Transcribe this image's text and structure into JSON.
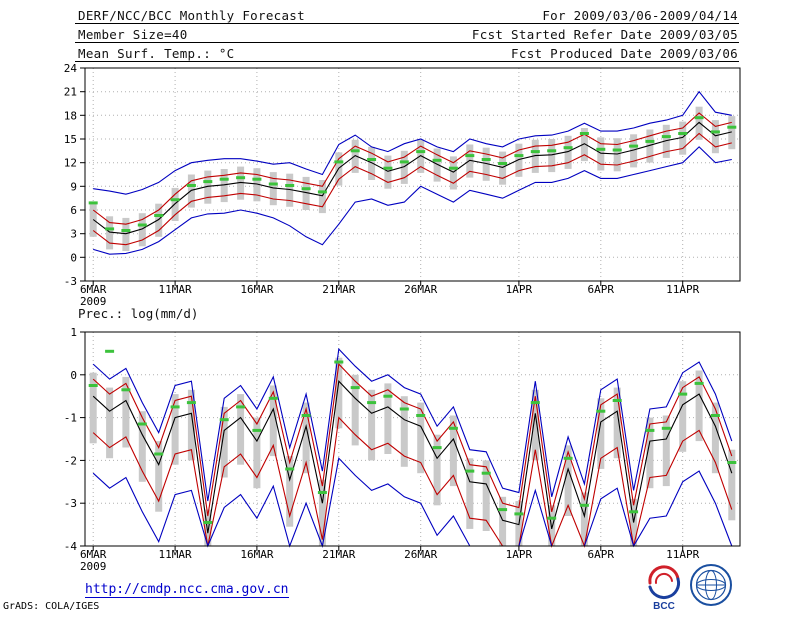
{
  "header": {
    "title": "DERF/NCC/BCC Monthly Forecast",
    "member_size": "Member Size=40",
    "for_range": "For 2009/03/06-2009/04/14",
    "refer_date": "Fcst Started Refer Date 2009/03/05",
    "produced_date": "Fcst Produced Date 2009/03/06"
  },
  "footer": {
    "grads_credit": "GrADS: COLA/IGES",
    "url": "http://cmdp.ncc.cma.gov.cn",
    "bcc_logo_label": "BCC"
  },
  "chart_data": [
    {
      "type": "line",
      "title": "Mean Surf. Temp.: °C",
      "n_points": 40,
      "x_tick_labels": [
        "6MAR",
        "11MAR",
        "16MAR",
        "21MAR",
        "26MAR",
        "1APR",
        "6APR",
        "11APR"
      ],
      "x_tick_days": [
        0,
        5,
        10,
        15,
        20,
        26,
        31,
        36
      ],
      "year_label": "2009",
      "ylim": [
        -3,
        24
      ],
      "yticks": [
        -3,
        0,
        3,
        6,
        9,
        12,
        15,
        18,
        21,
        24
      ],
      "grid": true,
      "legend": "none",
      "bars": {
        "name": "ensemble-spread-bar",
        "color": "#c9c9c9",
        "high": [
          6.8,
          5.2,
          5.0,
          5.6,
          6.8,
          8.8,
          10.5,
          11.0,
          11.2,
          11.5,
          11.3,
          10.8,
          10.6,
          10.2,
          9.8,
          13.3,
          14.9,
          14.0,
          12.9,
          13.5,
          14.9,
          13.8,
          12.8,
          14.3,
          13.9,
          13.4,
          14.4,
          14.9,
          15.0,
          15.4,
          16.4,
          15.2,
          15.1,
          15.6,
          16.2,
          16.8,
          17.2,
          19.1,
          17.4,
          17.9
        ],
        "low": [
          2.6,
          1.0,
          0.8,
          1.4,
          2.6,
          4.6,
          6.3,
          6.8,
          7.0,
          7.3,
          7.1,
          6.6,
          6.4,
          6.0,
          5.6,
          9.1,
          10.7,
          9.8,
          8.7,
          9.3,
          10.7,
          9.6,
          8.6,
          10.1,
          9.7,
          9.2,
          10.2,
          10.7,
          10.8,
          11.2,
          12.2,
          11.0,
          10.9,
          11.4,
          12.0,
          12.6,
          13.0,
          14.9,
          13.2,
          13.7
        ]
      },
      "series": [
        {
          "name": "ensemble-max",
          "style": "line",
          "color": "#0000c0",
          "values": [
            8.7,
            8.4,
            8.0,
            8.6,
            9.5,
            11.0,
            12.0,
            12.3,
            12.5,
            12.5,
            12.2,
            11.8,
            12.0,
            11.2,
            10.5,
            14.3,
            15.5,
            14.0,
            13.4,
            14.4,
            15.0,
            14.0,
            13.4,
            15.0,
            14.4,
            14.0,
            15.0,
            15.4,
            15.5,
            16.0,
            17.0,
            16.0,
            16.0,
            16.4,
            17.0,
            17.4,
            18.0,
            21.0,
            18.4,
            18.0
          ]
        },
        {
          "name": "mean-plus-std",
          "style": "line",
          "color": "#c00000",
          "values": [
            6.0,
            4.4,
            4.2,
            4.8,
            6.0,
            8.0,
            9.7,
            10.2,
            10.4,
            10.7,
            10.5,
            10.0,
            9.8,
            9.4,
            9.0,
            12.5,
            14.1,
            13.2,
            12.1,
            12.7,
            14.1,
            13.0,
            12.0,
            13.5,
            13.1,
            12.6,
            13.6,
            14.1,
            14.2,
            14.6,
            15.6,
            14.4,
            14.3,
            14.8,
            15.4,
            16.0,
            16.4,
            18.3,
            16.6,
            17.1
          ]
        },
        {
          "name": "ensemble-mean",
          "style": "line",
          "color": "#000000",
          "values": [
            4.8,
            3.2,
            3.0,
            3.6,
            4.8,
            6.8,
            8.5,
            9.0,
            9.2,
            9.5,
            9.3,
            8.8,
            8.6,
            8.2,
            7.8,
            11.3,
            12.9,
            12.0,
            10.9,
            11.5,
            12.9,
            11.8,
            10.8,
            12.3,
            11.9,
            11.4,
            12.4,
            12.9,
            13.0,
            13.4,
            14.4,
            13.2,
            13.1,
            13.6,
            14.2,
            14.8,
            15.2,
            17.1,
            15.4,
            15.9
          ]
        },
        {
          "name": "mean-minus-std",
          "style": "line",
          "color": "#c00000",
          "values": [
            3.4,
            1.8,
            1.6,
            2.2,
            3.4,
            5.4,
            7.1,
            7.6,
            7.8,
            8.1,
            7.9,
            7.4,
            7.2,
            6.8,
            6.4,
            9.9,
            11.5,
            10.6,
            9.5,
            10.1,
            11.5,
            10.4,
            9.4,
            10.9,
            10.5,
            10.0,
            11.0,
            11.5,
            11.6,
            12.0,
            13.0,
            11.8,
            11.7,
            12.2,
            12.8,
            13.4,
            13.8,
            15.7,
            14.0,
            14.5
          ]
        },
        {
          "name": "ensemble-min",
          "style": "line",
          "color": "#0000c0",
          "values": [
            1.0,
            0.4,
            0.5,
            1.0,
            2.0,
            3.5,
            5.0,
            5.5,
            5.6,
            6.0,
            5.6,
            5.0,
            4.0,
            2.6,
            1.6,
            4.2,
            7.0,
            7.4,
            6.6,
            7.0,
            9.0,
            8.0,
            7.0,
            8.5,
            8.0,
            7.5,
            8.5,
            9.5,
            9.5,
            10.0,
            11.0,
            10.0,
            10.0,
            10.5,
            11.0,
            11.5,
            12.0,
            14.0,
            12.0,
            12.4
          ]
        },
        {
          "name": "median-marks",
          "style": "marks",
          "color": "#3cc23c",
          "values": [
            6.9,
            3.6,
            3.4,
            4.1,
            5.3,
            7.3,
            9.1,
            9.6,
            9.9,
            10.1,
            9.9,
            9.3,
            9.1,
            8.7,
            8.3,
            12.1,
            13.5,
            12.4,
            11.3,
            12.1,
            13.4,
            12.3,
            11.3,
            12.9,
            12.4,
            11.9,
            12.9,
            13.4,
            13.5,
            13.9,
            15.7,
            13.7,
            13.6,
            14.1,
            14.7,
            15.3,
            15.7,
            17.7,
            15.9,
            16.5
          ]
        }
      ]
    },
    {
      "type": "line",
      "title": "Prec.: log(mm/d)",
      "n_points": 40,
      "x_tick_labels": [
        "6MAR",
        "11MAR",
        "16MAR",
        "21MAR",
        "26MAR",
        "1APR",
        "6APR",
        "11APR"
      ],
      "x_tick_days": [
        0,
        5,
        10,
        15,
        20,
        26,
        31,
        36
      ],
      "year_label": "2009",
      "ylim": [
        -4,
        1
      ],
      "yticks": [
        -4,
        -3,
        -2,
        -1,
        0,
        1
      ],
      "grid": true,
      "legend": "none",
      "bars": {
        "name": "ensemble-spread-bar",
        "color": "#c9c9c9",
        "high": [
          0.05,
          -0.3,
          -0.05,
          -0.85,
          -1.55,
          -0.45,
          -0.35,
          -3.15,
          -0.75,
          -0.45,
          -1.0,
          -0.25,
          -1.9,
          -0.65,
          -2.45,
          0.4,
          0.0,
          -0.35,
          -0.2,
          -0.5,
          -0.65,
          -1.4,
          -0.95,
          -1.95,
          -2.0,
          -2.85,
          -2.95,
          -0.35,
          -3.05,
          -1.65,
          -2.75,
          -0.55,
          -0.3,
          -2.9,
          -1.0,
          -0.95,
          -0.15,
          0.1,
          -0.65,
          -1.75
        ],
        "low": [
          -1.6,
          -1.95,
          -1.7,
          -2.5,
          -3.2,
          -2.1,
          -2.0,
          -4.0,
          -2.4,
          -2.1,
          -2.65,
          -1.9,
          -3.55,
          -2.3,
          -4.0,
          -1.25,
          -1.65,
          -2.0,
          -1.85,
          -2.15,
          -2.3,
          -3.05,
          -2.6,
          -3.6,
          -3.65,
          -4.0,
          -4.0,
          -2.0,
          -4.0,
          -3.3,
          -4.0,
          -2.2,
          -1.95,
          -4.0,
          -2.65,
          -2.6,
          -1.8,
          -1.55,
          -2.3,
          -3.4
        ]
      },
      "series": [
        {
          "name": "ensemble-max",
          "style": "line",
          "color": "#0000c0",
          "values": [
            0.25,
            -0.1,
            0.15,
            -0.65,
            -1.35,
            -0.25,
            -0.15,
            -2.95,
            -0.55,
            -0.25,
            -0.8,
            -0.05,
            -1.7,
            -0.45,
            -2.25,
            0.6,
            0.2,
            -0.15,
            0.0,
            -0.3,
            -0.45,
            -1.2,
            -0.75,
            -1.75,
            -1.8,
            -2.65,
            -2.75,
            -0.15,
            -2.85,
            -1.45,
            -2.55,
            -0.35,
            -0.1,
            -2.7,
            -0.8,
            -0.75,
            0.05,
            0.3,
            -0.45,
            -1.55
          ]
        },
        {
          "name": "mean-plus-std",
          "style": "line",
          "color": "#c00000",
          "values": [
            -0.1,
            -0.45,
            -0.2,
            -1.0,
            -1.7,
            -0.6,
            -0.5,
            -3.3,
            -0.9,
            -0.6,
            -1.15,
            -0.4,
            -2.05,
            -0.8,
            -2.6,
            0.25,
            -0.15,
            -0.5,
            -0.35,
            -0.65,
            -0.8,
            -1.55,
            -1.1,
            -2.1,
            -2.15,
            -3.0,
            -3.1,
            -0.5,
            -3.2,
            -1.8,
            -2.9,
            -0.7,
            -0.45,
            -3.05,
            -1.15,
            -1.1,
            -0.3,
            -0.05,
            -0.8,
            -1.9
          ]
        },
        {
          "name": "ensemble-mean",
          "style": "line",
          "color": "#000000",
          "values": [
            -0.5,
            -0.85,
            -0.6,
            -1.4,
            -2.1,
            -1.0,
            -0.9,
            -3.7,
            -1.3,
            -1.0,
            -1.55,
            -0.8,
            -2.45,
            -1.2,
            -3.0,
            -0.15,
            -0.55,
            -0.9,
            -0.75,
            -1.05,
            -1.2,
            -1.95,
            -1.5,
            -2.5,
            -2.55,
            -3.4,
            -3.5,
            -0.9,
            -3.6,
            -2.2,
            -3.3,
            -1.1,
            -0.85,
            -3.45,
            -1.55,
            -1.5,
            -0.7,
            -0.45,
            -1.2,
            -2.3
          ]
        },
        {
          "name": "mean-minus-std",
          "style": "line",
          "color": "#c00000",
          "values": [
            -1.35,
            -1.7,
            -1.45,
            -2.25,
            -2.95,
            -1.85,
            -1.75,
            -4.0,
            -2.15,
            -1.85,
            -2.4,
            -1.65,
            -3.3,
            -2.05,
            -3.85,
            -1.0,
            -1.4,
            -1.75,
            -1.6,
            -1.9,
            -2.05,
            -2.8,
            -2.35,
            -3.35,
            -3.4,
            -4.0,
            -4.0,
            -1.75,
            -4.0,
            -3.05,
            -4.0,
            -1.95,
            -1.7,
            -4.0,
            -2.4,
            -2.35,
            -1.55,
            -1.3,
            -2.05,
            -3.15
          ]
        },
        {
          "name": "ensemble-min",
          "style": "line",
          "color": "#0000c0",
          "values": [
            -2.3,
            -2.65,
            -2.4,
            -3.2,
            -3.9,
            -2.8,
            -2.7,
            -4.0,
            -3.1,
            -2.8,
            -3.35,
            -2.6,
            -4.0,
            -3.0,
            -4.0,
            -1.95,
            -2.35,
            -2.7,
            -2.55,
            -2.85,
            -3.0,
            -3.75,
            -3.3,
            -4.0,
            -4.0,
            -4.0,
            -4.0,
            -2.7,
            -4.0,
            -4.0,
            -4.0,
            -2.9,
            -2.65,
            -4.0,
            -3.35,
            -3.3,
            -2.5,
            -2.25,
            -3.0,
            -4.0
          ]
        },
        {
          "name": "median-marks",
          "style": "marks",
          "color": "#3cc23c",
          "values": [
            -0.25,
            0.55,
            -0.35,
            -1.15,
            -1.85,
            -0.75,
            -0.65,
            -3.45,
            -1.05,
            -0.75,
            -1.3,
            -0.55,
            -2.2,
            -0.95,
            -2.75,
            0.3,
            -0.3,
            -0.65,
            -0.5,
            -0.8,
            -0.95,
            -1.7,
            -1.25,
            -2.25,
            -2.3,
            -3.15,
            -3.25,
            -0.65,
            -3.35,
            -1.95,
            -3.05,
            -0.85,
            -0.6,
            -3.2,
            -1.3,
            -1.25,
            -0.45,
            -0.2,
            -0.95,
            -2.05
          ]
        }
      ]
    }
  ]
}
